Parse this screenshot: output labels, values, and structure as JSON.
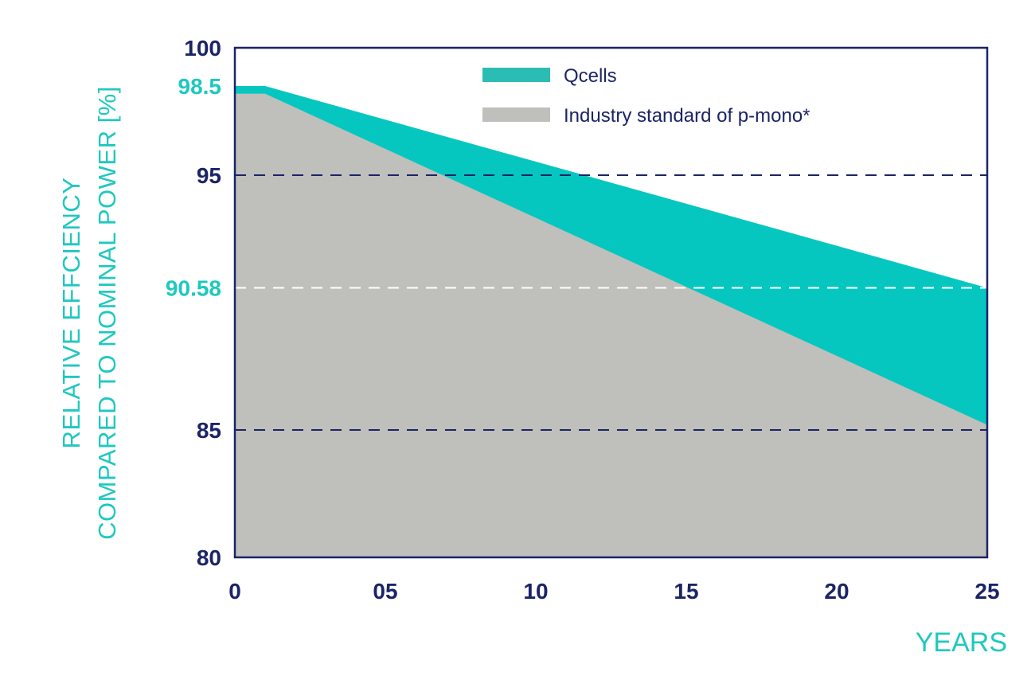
{
  "chart_data": {
    "type": "area",
    "xlabel": "YEARS",
    "ylabel": [
      "RELATIVE EFFCIENCY",
      "COMPARED TO NOMINAL POWER [%]"
    ],
    "xlim": [
      0,
      25
    ],
    "ylim": [
      80,
      100
    ],
    "x_ticks": [
      {
        "value": 0,
        "label": "0"
      },
      {
        "value": 5,
        "label": "05"
      },
      {
        "value": 10,
        "label": "10"
      },
      {
        "value": 15,
        "label": "15"
      },
      {
        "value": 20,
        "label": "20"
      },
      {
        "value": 25,
        "label": "25"
      }
    ],
    "y_ticks": [
      {
        "value": 100,
        "label": "100",
        "highlight": false
      },
      {
        "value": 98.5,
        "label": "98.5",
        "highlight": true
      },
      {
        "value": 95,
        "label": "95",
        "highlight": false
      },
      {
        "value": 90.58,
        "label": "90.58",
        "highlight": true
      },
      {
        "value": 85,
        "label": "85",
        "highlight": false
      },
      {
        "value": 80,
        "label": "80",
        "highlight": false
      }
    ],
    "gridlines": [
      {
        "value": 95,
        "style": "dark-dashed"
      },
      {
        "value": 90.58,
        "style": "white-dashed"
      },
      {
        "value": 85,
        "style": "dark-dashed"
      }
    ],
    "legend_position": "top-center",
    "series": [
      {
        "name": "Qcells",
        "color": "#06c7c0",
        "legend_color": "#2bbdb4",
        "x": [
          0,
          1,
          25
        ],
        "y": [
          98.5,
          98.5,
          90.58
        ]
      },
      {
        "name": "Industry standard of p-mono*",
        "color": "#bfbfbb",
        "legend_color": "#bfbfbb",
        "x": [
          0,
          1,
          25
        ],
        "y": [
          98.2,
          98.2,
          85.2
        ]
      }
    ]
  },
  "colors": {
    "axis": "#1b2466",
    "accent": "#1ec8bf",
    "dark_grid": "#1b2466",
    "light_grid": "#ffffff"
  }
}
